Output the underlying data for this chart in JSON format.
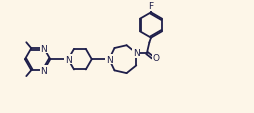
{
  "bg_color": "#fdf6e8",
  "line_color": "#1e1e4a",
  "line_width": 1.3,
  "text_color": "#1e1e4a",
  "font_size": 6.5,
  "xlim": [
    0,
    12
  ],
  "ylim": [
    0,
    5.5
  ]
}
